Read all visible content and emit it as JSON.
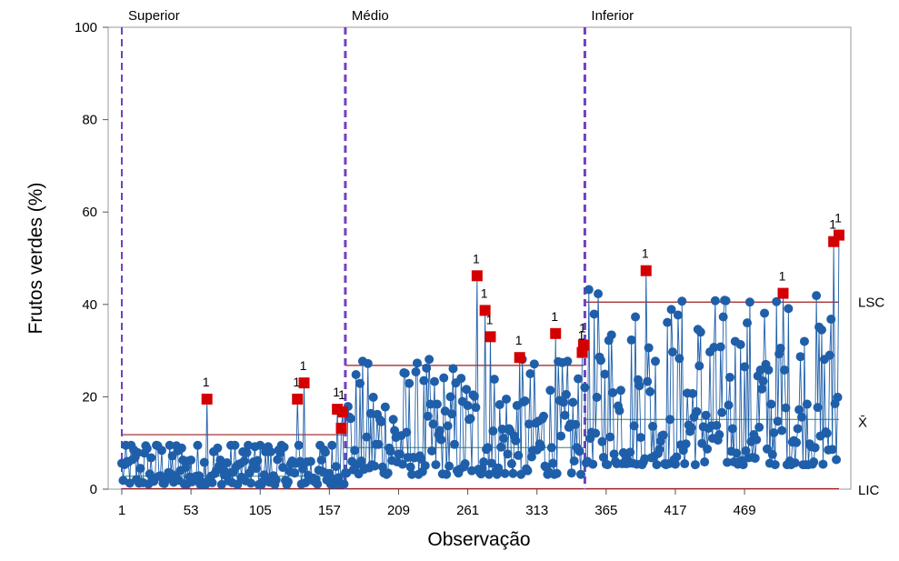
{
  "chart_data": {
    "type": "scatter",
    "subtype": "I-chart (individual values control chart) by stage",
    "xlabel": "Observação",
    "ylabel": "Frutos verdes (%)",
    "xlim": [
      1,
      542
    ],
    "ylim": [
      0,
      100
    ],
    "x_ticks": [
      1,
      53,
      105,
      157,
      209,
      261,
      313,
      365,
      417,
      469
    ],
    "x_tick_labels": [
      "1",
      "53",
      "105",
      "157",
      "209",
      "261",
      "313",
      "365",
      "417",
      "469"
    ],
    "y_ticks": [
      0,
      20,
      40,
      60,
      80,
      100
    ],
    "y_tick_labels": [
      "0",
      "20",
      "40",
      "60",
      "80",
      "100"
    ],
    "grid": false,
    "limit_labels": {
      "ucl": "LSC",
      "center": "X̄",
      "lcl": "LIC"
    },
    "phase_dividers": [
      1,
      169,
      349
    ],
    "stages": [
      {
        "name": "Superior",
        "start": 1,
        "end": 168,
        "ucl": 11.8,
        "mean": 2.8,
        "lcl": 0
      },
      {
        "name": "Médio",
        "start": 169,
        "end": 348,
        "ucl": 26.8,
        "mean": 9,
        "lcl": 0
      },
      {
        "name": "Inferior",
        "start": 349,
        "end": 540,
        "ucl": 40.5,
        "mean": 15.1,
        "lcl": 0
      }
    ],
    "flagged_points": [
      {
        "x": 65,
        "y": 19.5,
        "label": "1"
      },
      {
        "x": 133,
        "y": 19.5,
        "label": "1"
      },
      {
        "x": 138,
        "y": 23,
        "label": "1"
      },
      {
        "x": 163,
        "y": 17.3,
        "label": "1"
      },
      {
        "x": 166,
        "y": 13.2,
        "label": "1"
      },
      {
        "x": 167,
        "y": 16.7,
        "label": "1"
      },
      {
        "x": 268,
        "y": 46.2,
        "label": "1"
      },
      {
        "x": 274,
        "y": 38.7,
        "label": "1"
      },
      {
        "x": 278,
        "y": 33,
        "label": "1"
      },
      {
        "x": 300,
        "y": 28.5,
        "label": "1"
      },
      {
        "x": 327,
        "y": 33.7,
        "label": "1"
      },
      {
        "x": 347,
        "y": 29.6,
        "label": "1"
      },
      {
        "x": 348,
        "y": 31.2,
        "label": "1"
      },
      {
        "x": 395,
        "y": 47.3,
        "label": "1"
      },
      {
        "x": 498,
        "y": 42.4,
        "label": "1"
      },
      {
        "x": 536,
        "y": 53.6,
        "label": "1"
      },
      {
        "x": 540,
        "y": 55,
        "label": "1"
      }
    ],
    "series_generation": {
      "n": 540,
      "note": "individual observations per stage (values estimated from the plotted points)"
    },
    "phase_text": [
      "Superior",
      "Médio",
      "Inferior"
    ],
    "colors": {
      "points": "#1f5faa",
      "flagged": "#d40000",
      "limits": "#9b1c20",
      "dividers": "#7340c0",
      "center": "#1f5faa"
    }
  }
}
